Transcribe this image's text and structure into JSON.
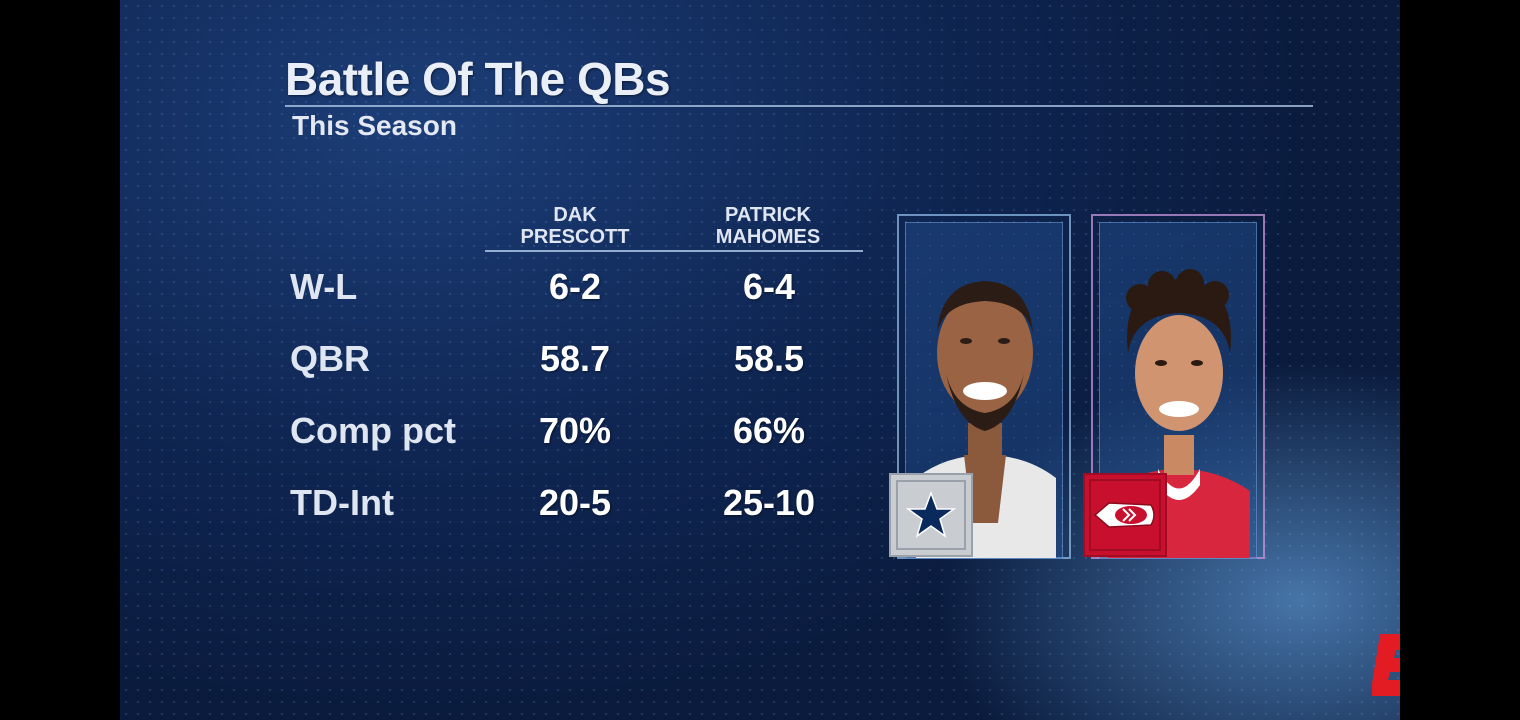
{
  "graphic": {
    "title": "Battle Of The QBs",
    "subtitle": "This Season",
    "players": [
      {
        "first": "DAK",
        "last": "PRESCOTT",
        "team_logo": "dallas-star-logo",
        "team_color": "#c9ccd1"
      },
      {
        "first": "PATRICK",
        "last": "MAHOMES",
        "team_logo": "kansas-city-arrowhead-logo",
        "team_color": "#c8102e"
      }
    ],
    "rows": [
      {
        "label": "W-L",
        "values": [
          "6-2",
          "6-4"
        ]
      },
      {
        "label": "QBR",
        "values": [
          "58.7",
          "58.5"
        ]
      },
      {
        "label": "Comp pct",
        "values": [
          "70%",
          "66%"
        ]
      },
      {
        "label": "TD-Int",
        "values": [
          "20-5",
          "25-10"
        ]
      }
    ]
  },
  "network_logo": {
    "name": "espn-e-logo",
    "color": "#e31b23"
  },
  "colors": {
    "background": "#0f2653",
    "text": "#ffffff",
    "accent_blue": "#6fb2ff"
  }
}
